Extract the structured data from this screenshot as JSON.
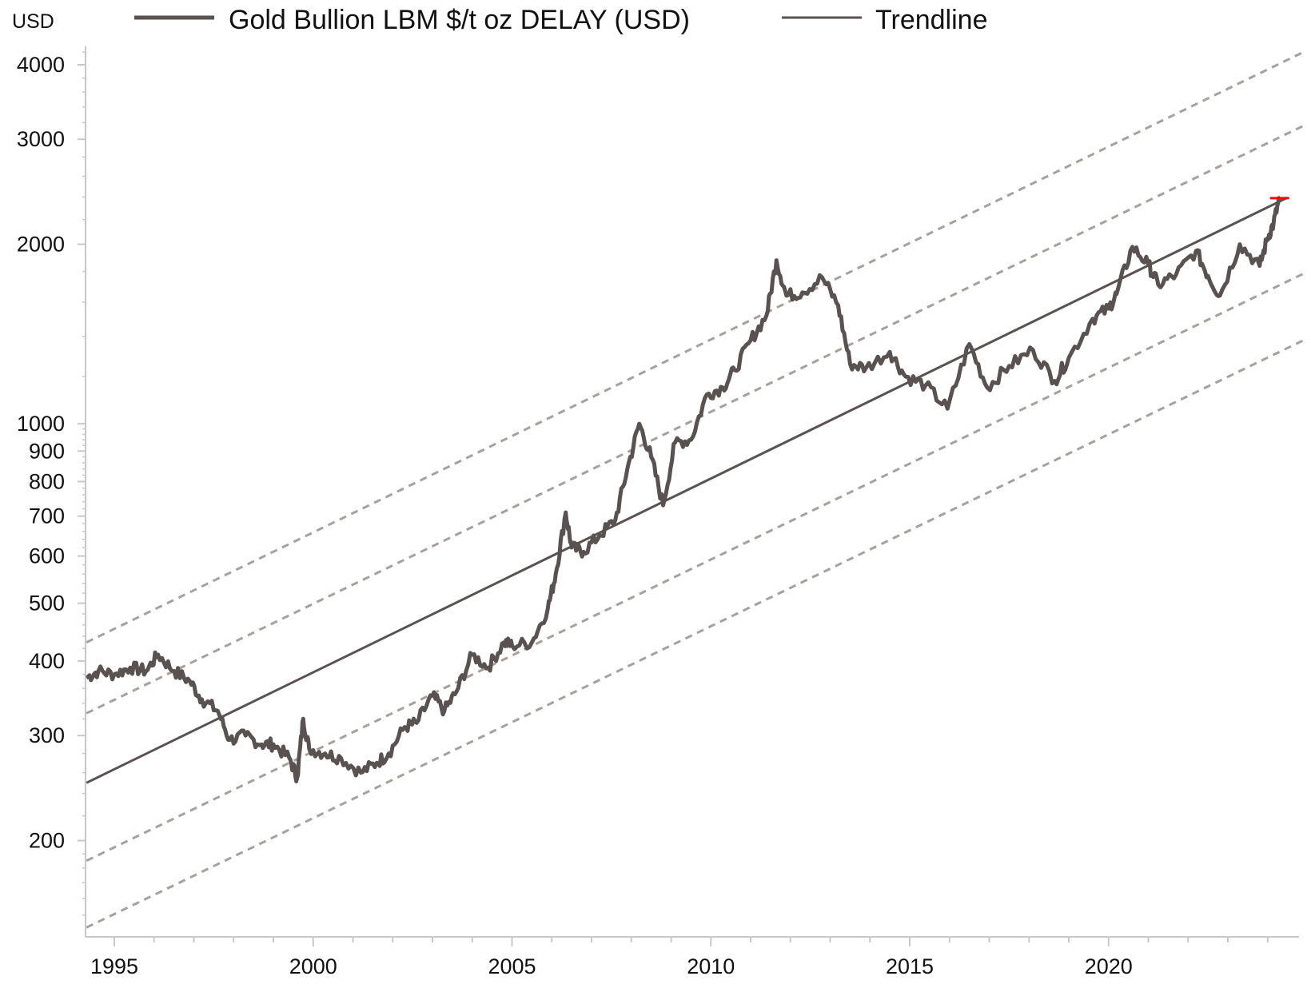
{
  "chart_data": {
    "type": "line",
    "title": "",
    "unit_label": "USD",
    "y_scale": "log",
    "ylim": [
      150,
      4300
    ],
    "xlim": [
      1994.3,
      2024.9
    ],
    "y_ticks": [
      200,
      300,
      400,
      500,
      600,
      700,
      800,
      900,
      1000,
      2000,
      3000,
      4000
    ],
    "y_tick_labels": [
      "200",
      "300",
      "400",
      "500",
      "600",
      "700",
      "800",
      "900",
      "1000",
      "2000",
      "3000",
      "4000"
    ],
    "x_ticks": [
      1995,
      2000,
      2005,
      2010,
      2015,
      2020
    ],
    "x_tick_labels": [
      "1995",
      "2000",
      "2005",
      "2010",
      "2015",
      "2020"
    ],
    "grid": false,
    "legend": {
      "placement": "top",
      "entries": [
        "Gold Bullion LBM $/t oz DELAY (USD)",
        "Trendline"
      ]
    },
    "colors": {
      "series": "#595250",
      "trendline": "#595250",
      "bands": "#a8a09c",
      "axis": "#c8c8c8",
      "last_marker": "#ff0000"
    },
    "series": [
      {
        "name": "Gold Bullion LBM $/t oz DELAY (USD)",
        "x": [
          1994.3,
          1994.6,
          1995.0,
          1995.4,
          1995.8,
          1996.1,
          1996.5,
          1996.9,
          1997.2,
          1997.6,
          1997.9,
          1998.3,
          1998.7,
          1999.0,
          1999.4,
          1999.6,
          1999.75,
          1999.9,
          2000.3,
          2000.7,
          2001.2,
          2001.6,
          2001.9,
          2002.3,
          2002.6,
          2003.0,
          2003.3,
          2003.6,
          2004.0,
          2004.4,
          2004.8,
          2005.0,
          2005.5,
          2005.9,
          2006.1,
          2006.35,
          2006.5,
          2006.8,
          2007.2,
          2007.6,
          2007.9,
          2008.2,
          2008.5,
          2008.8,
          2009.1,
          2009.5,
          2009.9,
          2010.3,
          2010.6,
          2011.0,
          2011.4,
          2011.65,
          2011.9,
          2012.3,
          2012.8,
          2013.2,
          2013.5,
          2013.9,
          2014.5,
          2014.9,
          2015.4,
          2015.95,
          2016.5,
          2016.95,
          2017.5,
          2018.1,
          2018.65,
          2019.0,
          2019.6,
          2020.0,
          2020.2,
          2020.6,
          2021.0,
          2021.25,
          2021.7,
          2022.2,
          2022.5,
          2022.8,
          2023.3,
          2023.8,
          2024.0,
          2024.15,
          2024.3
        ],
        "values": [
          375,
          385,
          380,
          390,
          385,
          410,
          385,
          370,
          345,
          330,
          295,
          300,
          290,
          290,
          275,
          255,
          320,
          285,
          280,
          275,
          260,
          270,
          280,
          310,
          315,
          350,
          330,
          355,
          410,
          390,
          430,
          425,
          430,
          490,
          560,
          710,
          620,
          610,
          650,
          690,
          840,
          1000,
          880,
          730,
          930,
          940,
          1120,
          1150,
          1230,
          1380,
          1520,
          1880,
          1640,
          1660,
          1760,
          1580,
          1260,
          1240,
          1320,
          1200,
          1160,
          1060,
          1360,
          1150,
          1250,
          1330,
          1180,
          1290,
          1500,
          1560,
          1650,
          1980,
          1850,
          1710,
          1780,
          1950,
          1770,
          1640,
          2000,
          1840,
          2050,
          2170,
          2390
        ]
      },
      {
        "name": "Trendline",
        "x": [
          1994.3,
          2024.5
        ],
        "values": [
          250,
          2395
        ]
      }
    ],
    "bands": [
      {
        "x": [
          1994.3,
          2024.9
        ],
        "values": [
          430,
          4200
        ]
      },
      {
        "x": [
          1994.3,
          2024.9
        ],
        "values": [
          327,
          3160
        ]
      },
      {
        "x": [
          1994.3,
          2024.9
        ],
        "values": [
          185,
          1785
        ]
      },
      {
        "x": [
          1994.3,
          2024.9
        ],
        "values": [
          143,
          1380
        ]
      }
    ]
  }
}
